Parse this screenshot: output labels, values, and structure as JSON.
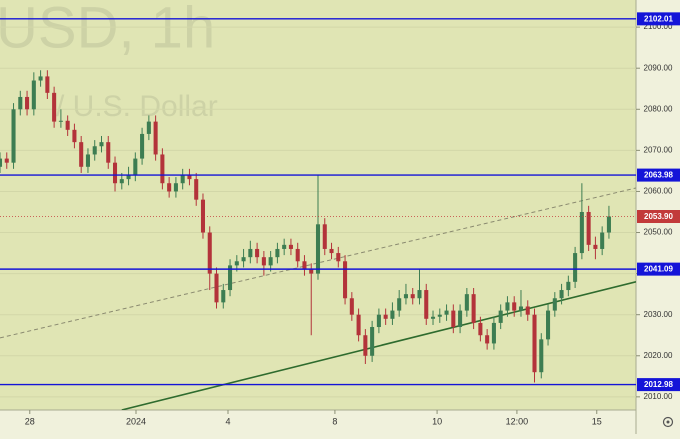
{
  "chart_data": {
    "type": "candlestick",
    "watermark": [
      "USD, 1h",
      "/ U.S. Dollar"
    ],
    "up_color": "#3d7d52",
    "down_color": "#b3333a",
    "x": [
      0,
      1,
      2,
      3,
      4,
      5,
      6,
      7,
      8,
      9,
      10,
      11,
      12,
      13,
      14,
      15,
      16,
      17,
      18,
      19,
      20,
      21,
      22,
      23,
      24,
      25,
      26,
      27,
      28,
      29,
      30,
      31,
      32,
      33,
      34,
      35,
      36,
      37,
      38,
      39,
      40,
      41,
      42,
      43,
      44,
      45,
      46,
      47,
      48,
      49,
      50,
      51,
      52,
      53,
      54,
      55,
      56,
      57,
      58,
      59,
      60,
      61,
      62,
      63,
      64,
      65,
      66,
      67,
      68,
      69,
      70,
      71,
      72,
      73,
      74,
      75,
      76,
      77,
      78,
      79,
      80,
      81,
      82,
      83,
      84,
      85,
      86,
      87,
      88,
      89,
      90
    ],
    "candles": [
      [
        2066,
        2069.5,
        2064.5,
        2068
      ],
      [
        2068,
        2069.5,
        2065.5,
        2067
      ],
      [
        2067,
        2081.5,
        2065.5,
        2080
      ],
      [
        2080,
        2084.5,
        2078.5,
        2083
      ],
      [
        2083,
        2084.5,
        2078.5,
        2080
      ],
      [
        2080,
        2089,
        2078.5,
        2087
      ],
      [
        2087,
        2089.5,
        2085.5,
        2088
      ],
      [
        2088,
        2089.5,
        2082.5,
        2084
      ],
      [
        2084,
        2085.5,
        2075.5,
        2077
      ],
      [
        2077,
        2080,
        2075.5,
        2077.2
      ],
      [
        2077.2,
        2078.5,
        2073.5,
        2075
      ],
      [
        2075,
        2076.5,
        2070.5,
        2072
      ],
      [
        2072,
        2073.5,
        2064.5,
        2066
      ],
      [
        2066,
        2070.5,
        2064.5,
        2069
      ],
      [
        2069,
        2072.5,
        2067.5,
        2071
      ],
      [
        2071,
        2073.5,
        2069.5,
        2072
      ],
      [
        2072,
        2073.5,
        2065.5,
        2067
      ],
      [
        2067,
        2068.5,
        2060,
        2062
      ],
      [
        2062,
        2064.5,
        2060.5,
        2063
      ],
      [
        2063,
        2066,
        2061.5,
        2064
      ],
      [
        2064,
        2069.5,
        2062.5,
        2068
      ],
      [
        2068,
        2075.5,
        2066.5,
        2074
      ],
      [
        2074,
        2078.5,
        2072.5,
        2077
      ],
      [
        2077,
        2078.5,
        2067.5,
        2069
      ],
      [
        2069,
        2070.5,
        2060.5,
        2062
      ],
      [
        2062,
        2063.5,
        2058.5,
        2060
      ],
      [
        2060,
        2063.5,
        2058.5,
        2062
      ],
      [
        2062,
        2065.5,
        2060.5,
        2064
      ],
      [
        2064,
        2065.5,
        2061.5,
        2063
      ],
      [
        2063,
        2064.5,
        2056.5,
        2058
      ],
      [
        2058,
        2059.5,
        2048.5,
        2050
      ],
      [
        2050,
        2051.5,
        2036,
        2040
      ],
      [
        2040,
        2041.5,
        2031.5,
        2033
      ],
      [
        2033,
        2037.5,
        2031.5,
        2036
      ],
      [
        2036,
        2043.5,
        2034.5,
        2042
      ],
      [
        2042,
        2044.5,
        2040.5,
        2043
      ],
      [
        2043,
        2046,
        2041.5,
        2044
      ],
      [
        2044,
        2048,
        2042.5,
        2046
      ],
      [
        2046,
        2047.5,
        2042.5,
        2044
      ],
      [
        2044,
        2045.5,
        2039.5,
        2042
      ],
      [
        2042,
        2045.5,
        2040.5,
        2044
      ],
      [
        2044,
        2047.5,
        2042.5,
        2046
      ],
      [
        2046,
        2048.5,
        2044.5,
        2047
      ],
      [
        2047,
        2048.5,
        2044.5,
        2046
      ],
      [
        2046,
        2047.5,
        2041.5,
        2043
      ],
      [
        2043,
        2044.5,
        2039.5,
        2041
      ],
      [
        2041,
        2042.5,
        2025,
        2040
      ],
      [
        2040,
        2064,
        2038.5,
        2052
      ],
      [
        2052,
        2053.5,
        2044.5,
        2046
      ],
      [
        2046,
        2047.5,
        2043.5,
        2045
      ],
      [
        2045,
        2046.5,
        2041.5,
        2043
      ],
      [
        2043,
        2044.5,
        2032.5,
        2034
      ],
      [
        2034,
        2035.5,
        2028.5,
        2030
      ],
      [
        2030,
        2031.5,
        2023.5,
        2025
      ],
      [
        2025,
        2026.5,
        2018,
        2020
      ],
      [
        2020,
        2028.5,
        2018.5,
        2027
      ],
      [
        2027,
        2031.5,
        2025.5,
        2030
      ],
      [
        2030,
        2031.5,
        2027.5,
        2029
      ],
      [
        2029,
        2033,
        2027.5,
        2031
      ],
      [
        2031,
        2036,
        2029.5,
        2034
      ],
      [
        2034,
        2037.5,
        2032.5,
        2035
      ],
      [
        2035,
        2036.5,
        2032.5,
        2034
      ],
      [
        2034,
        2041,
        2032.5,
        2036
      ],
      [
        2036,
        2037.5,
        2027.5,
        2029
      ],
      [
        2029,
        2031,
        2027.5,
        2029.5
      ],
      [
        2029.5,
        2031.5,
        2028,
        2030
      ],
      [
        2030,
        2032.5,
        2028.5,
        2031
      ],
      [
        2031,
        2032.5,
        2025.5,
        2027
      ],
      [
        2027,
        2032.5,
        2025.5,
        2031
      ],
      [
        2031,
        2036.5,
        2029.5,
        2035
      ],
      [
        2035,
        2036.5,
        2026.5,
        2028
      ],
      [
        2028,
        2029.5,
        2023.5,
        2025
      ],
      [
        2025,
        2026.5,
        2021.5,
        2023
      ],
      [
        2023,
        2029.5,
        2021.5,
        2028
      ],
      [
        2028,
        2032.5,
        2026.5,
        2031
      ],
      [
        2031,
        2034.5,
        2029.5,
        2033
      ],
      [
        2033,
        2034.5,
        2029.5,
        2031
      ],
      [
        2031,
        2036,
        2029.5,
        2032
      ],
      [
        2032,
        2033.5,
        2028.5,
        2030
      ],
      [
        2030,
        2031.5,
        2013.5,
        2016
      ],
      [
        2016,
        2025.5,
        2014.5,
        2024
      ],
      [
        2024,
        2032.5,
        2022.5,
        2031
      ],
      [
        2031,
        2035.5,
        2029.5,
        2034
      ],
      [
        2034,
        2037.5,
        2032.5,
        2036
      ],
      [
        2036,
        2039.5,
        2034.5,
        2038
      ],
      [
        2038,
        2046.5,
        2036.5,
        2045
      ],
      [
        2045,
        2062,
        2043.5,
        2055
      ],
      [
        2055,
        2056.5,
        2045.5,
        2047
      ],
      [
        2047,
        2049,
        2043.5,
        2046
      ],
      [
        2046,
        2051.5,
        2044.5,
        2050
      ],
      [
        2050,
        2056.5,
        2048.5,
        2053.9
      ]
    ],
    "xlim": [
      0,
      94
    ],
    "ylim": [
      2006.8,
      2106.6
    ],
    "xticks": [
      {
        "value": 4.4,
        "label": "28"
      },
      {
        "value": 20.1,
        "label": "2024"
      },
      {
        "value": 33.7,
        "label": "4"
      },
      {
        "value": 49.5,
        "label": "8"
      },
      {
        "value": 64.6,
        "label": "10"
      },
      {
        "value": 76.4,
        "label": "12:00"
      },
      {
        "value": 88.2,
        "label": "15"
      }
    ],
    "yticks": [
      {
        "value": 2010,
        "label": "2010.00"
      },
      {
        "value": 2020,
        "label": "2020.00"
      },
      {
        "value": 2030,
        "label": "2030.00"
      },
      {
        "value": 2040,
        "label": "2040.00"
      },
      {
        "value": 2050,
        "label": "2050.00"
      },
      {
        "value": 2060,
        "label": "2060.00"
      },
      {
        "value": 2070,
        "label": "2070.00"
      },
      {
        "value": 2080,
        "label": "2080.00"
      },
      {
        "value": 2090,
        "label": "2090.00"
      },
      {
        "value": 2100,
        "label": "2100.00"
      }
    ],
    "grid": true,
    "levels": [
      2102.01,
      2063.98,
      2041.09,
      2012.98
    ],
    "level_color": "#1414d8",
    "last_price": {
      "value": 2053.9,
      "label": "2053.90"
    },
    "last_price_color": "#c23a3a",
    "trendlines": [
      {
        "color": "#2e6b2e",
        "style": "solid",
        "points": [
          [
            18,
            2006.8
          ],
          [
            94,
            2038
          ]
        ]
      },
      {
        "color": "#8a8a70",
        "style": "dashed",
        "points": [
          [
            0,
            2024.35
          ],
          [
            94,
            2060.84
          ]
        ]
      }
    ]
  }
}
